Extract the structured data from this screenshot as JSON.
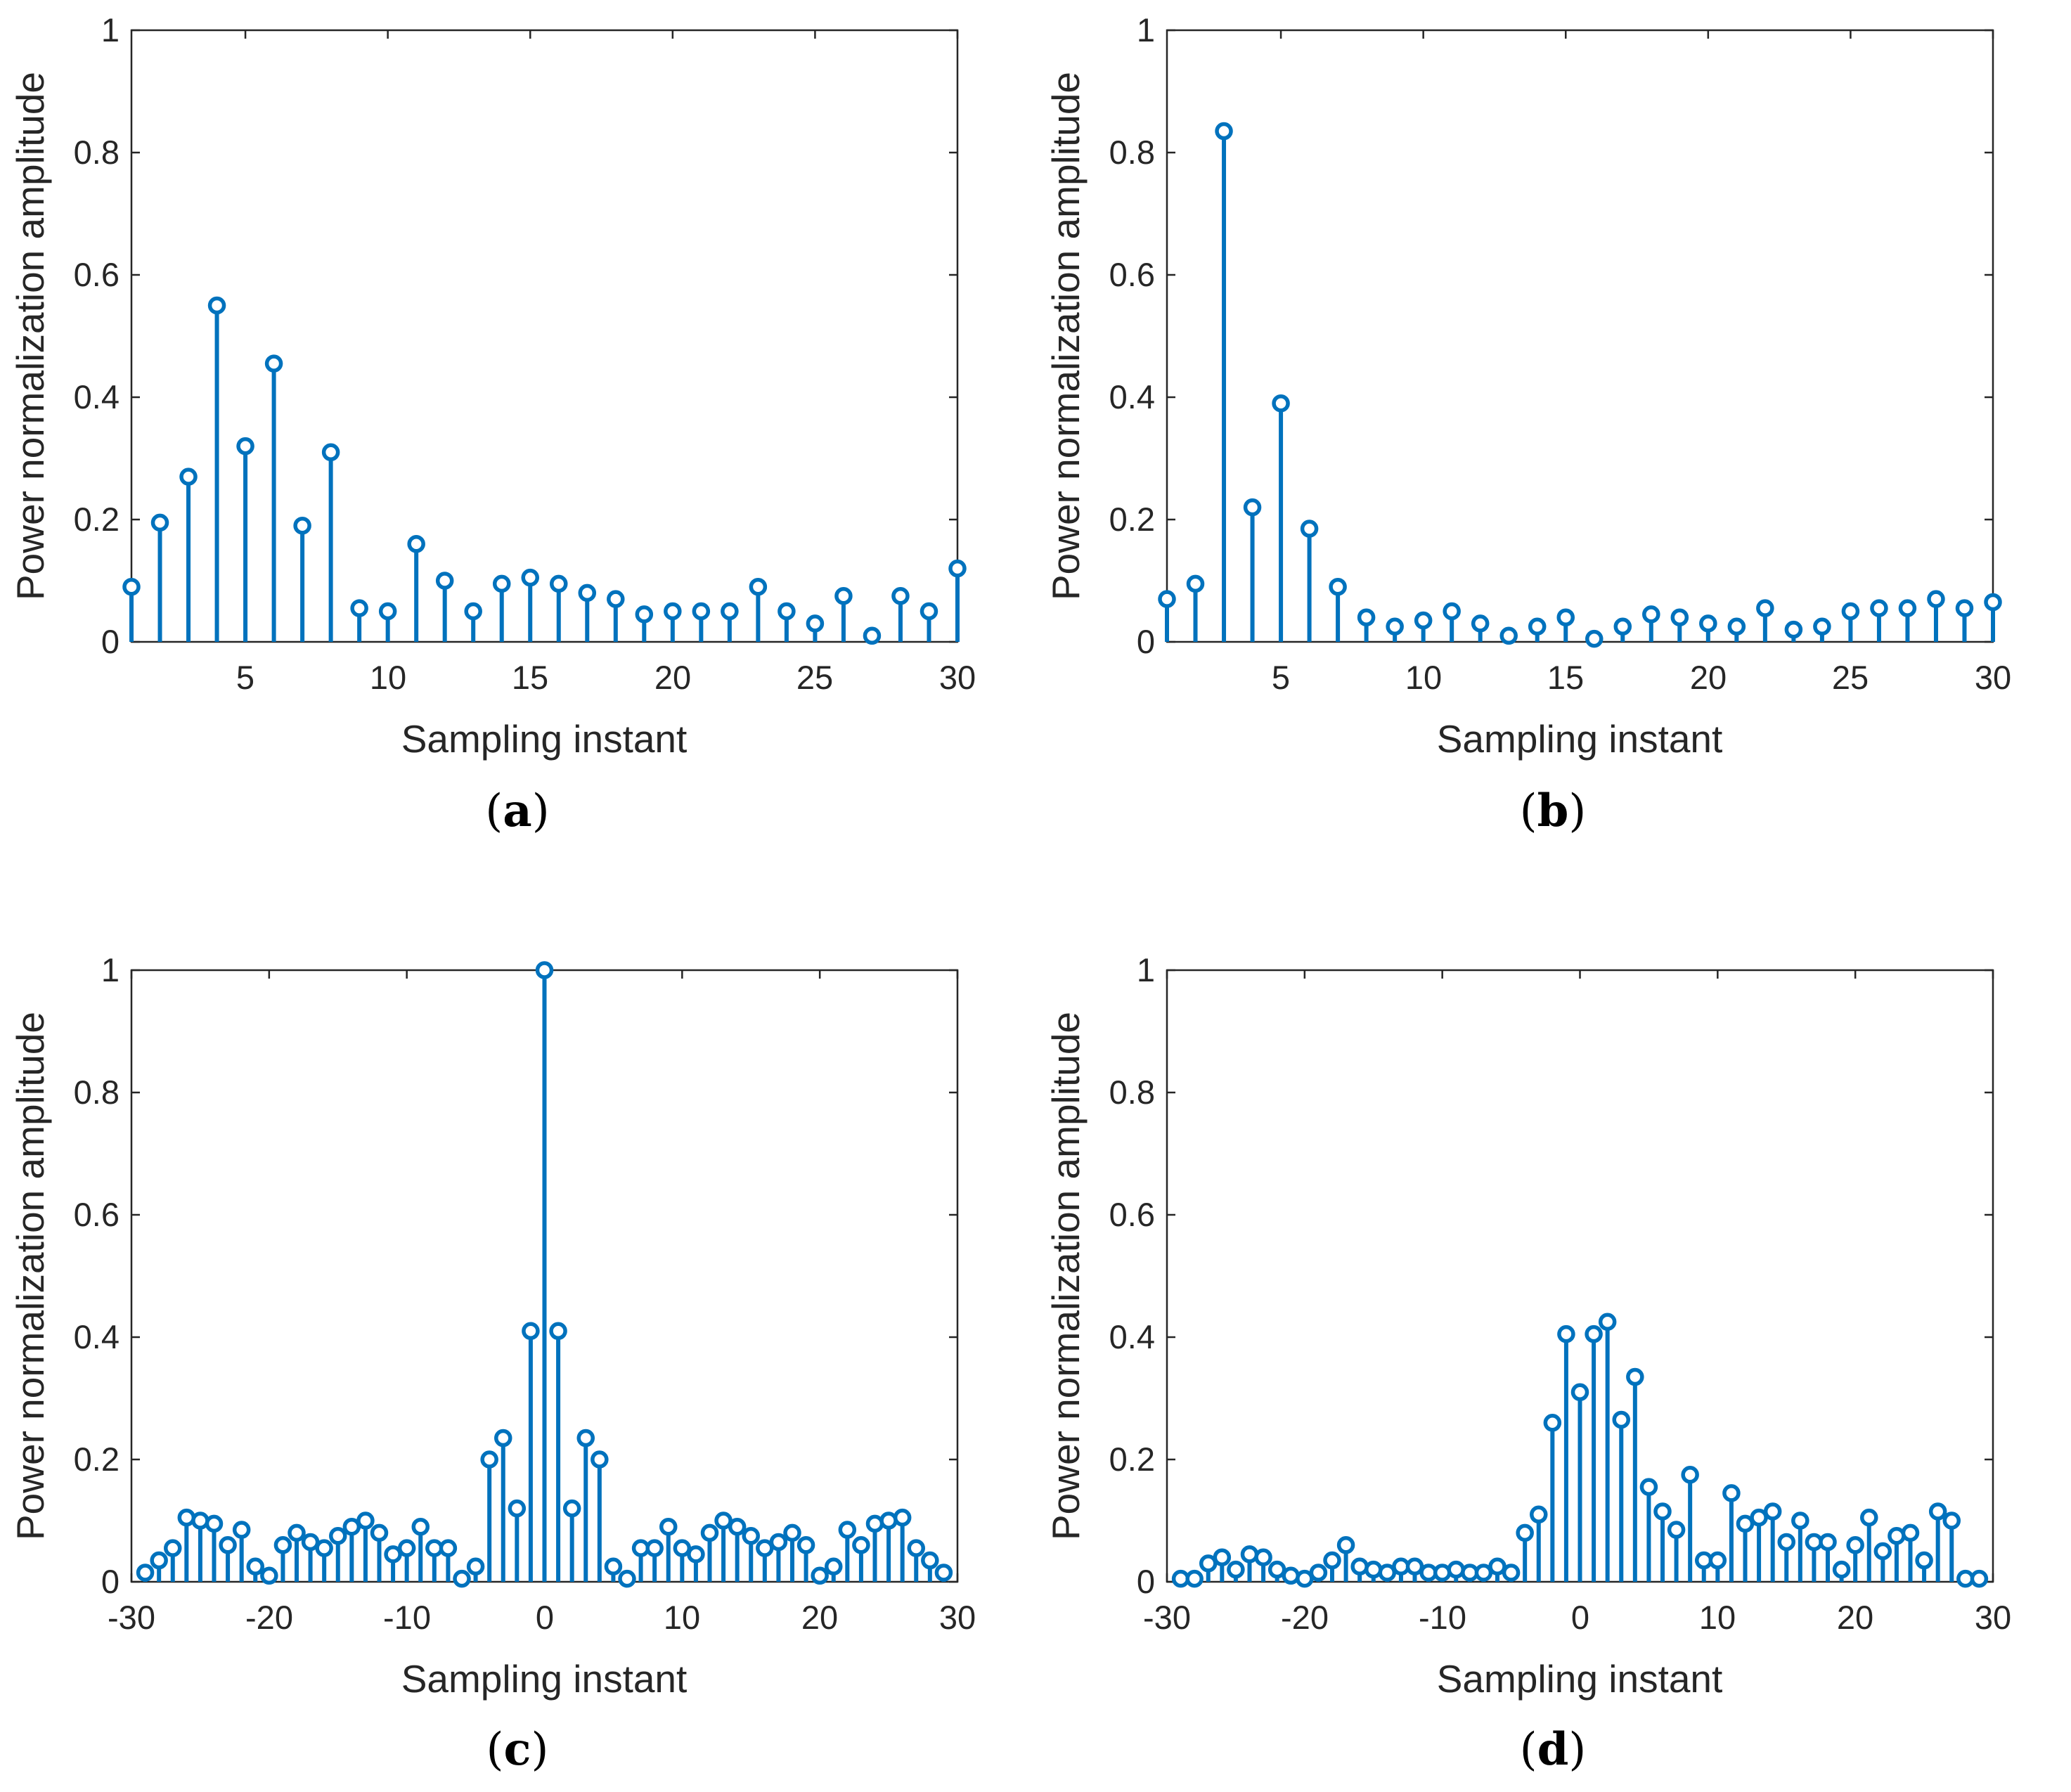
{
  "figure": {
    "stem_color": "#0072BD",
    "axis_color": "#262626"
  },
  "chart_data": [
    {
      "id": "a",
      "type": "stem",
      "caption_letter": "a",
      "xlabel": "Sampling instant",
      "ylabel": "Power normalization amplitude",
      "xlim": [
        1,
        30
      ],
      "ylim": [
        0,
        1
      ],
      "xticks": [
        5,
        10,
        15,
        20,
        25,
        30
      ],
      "yticks": [
        0,
        0.2,
        0.4,
        0.6,
        0.8,
        1
      ],
      "xtick_labels": [
        "5",
        "10",
        "15",
        "20",
        "25",
        "30"
      ],
      "ytick_labels": [
        "0",
        "0.2",
        "0.4",
        "0.6",
        "0.8",
        "1"
      ],
      "x": [
        1,
        2,
        3,
        4,
        5,
        6,
        7,
        8,
        9,
        10,
        11,
        12,
        13,
        14,
        15,
        16,
        17,
        18,
        19,
        20,
        21,
        22,
        23,
        24,
        25,
        26,
        27,
        28,
        29,
        30
      ],
      "values": [
        0.09,
        0.195,
        0.27,
        0.55,
        0.32,
        0.455,
        0.19,
        0.31,
        0.055,
        0.05,
        0.16,
        0.1,
        0.05,
        0.095,
        0.105,
        0.095,
        0.08,
        0.07,
        0.045,
        0.05,
        0.05,
        0.05,
        0.09,
        0.05,
        0.03,
        0.075,
        0.01,
        0.075,
        0.05,
        0.12
      ]
    },
    {
      "id": "b",
      "type": "stem",
      "caption_letter": "b",
      "xlabel": "Sampling instant",
      "ylabel": "Power normalization amplitude",
      "xlim": [
        1,
        30
      ],
      "ylim": [
        0,
        1
      ],
      "xticks": [
        5,
        10,
        15,
        20,
        25,
        30
      ],
      "yticks": [
        0,
        0.2,
        0.4,
        0.6,
        0.8,
        1
      ],
      "xtick_labels": [
        "5",
        "10",
        "15",
        "20",
        "25",
        "30"
      ],
      "ytick_labels": [
        "0",
        "0.2",
        "0.4",
        "0.6",
        "0.8",
        "1"
      ],
      "x": [
        1,
        2,
        3,
        4,
        5,
        6,
        7,
        8,
        9,
        10,
        11,
        12,
        13,
        14,
        15,
        16,
        17,
        18,
        19,
        20,
        21,
        22,
        23,
        24,
        25,
        26,
        27,
        28,
        29,
        30
      ],
      "values": [
        0.07,
        0.095,
        0.835,
        0.22,
        0.39,
        0.185,
        0.09,
        0.04,
        0.025,
        0.035,
        0.05,
        0.03,
        0.01,
        0.025,
        0.04,
        0.005,
        0.025,
        0.045,
        0.04,
        0.03,
        0.025,
        0.055,
        0.02,
        0.025,
        0.05,
        0.055,
        0.055,
        0.07,
        0.055,
        0.065
      ]
    },
    {
      "id": "c",
      "type": "stem",
      "caption_letter": "c",
      "xlabel": "Sampling instant",
      "ylabel": "Power normalization amplitude",
      "xlim": [
        -30,
        30
      ],
      "ylim": [
        0,
        1
      ],
      "xticks": [
        -30,
        -20,
        -10,
        0,
        10,
        20,
        30
      ],
      "yticks": [
        0,
        0.2,
        0.4,
        0.6,
        0.8,
        1
      ],
      "xtick_labels": [
        "-30",
        "-20",
        "-10",
        "0",
        "10",
        "20",
        "30"
      ],
      "ytick_labels": [
        "0",
        "0.2",
        "0.4",
        "0.6",
        "0.8",
        "1"
      ],
      "x": [
        -29,
        -28,
        -27,
        -26,
        -25,
        -24,
        -23,
        -22,
        -21,
        -20,
        -19,
        -18,
        -17,
        -16,
        -15,
        -14,
        -13,
        -12,
        -11,
        -10,
        -9,
        -8,
        -7,
        -6,
        -5,
        -4,
        -3,
        -2,
        -1,
        0,
        1,
        2,
        3,
        4,
        5,
        6,
        7,
        8,
        9,
        10,
        11,
        12,
        13,
        14,
        15,
        16,
        17,
        18,
        19,
        20,
        21,
        22,
        23,
        24,
        25,
        26,
        27,
        28,
        29
      ],
      "values": [
        0.015,
        0.035,
        0.055,
        0.105,
        0.1,
        0.095,
        0.06,
        0.085,
        0.025,
        0.01,
        0.06,
        0.08,
        0.065,
        0.055,
        0.075,
        0.09,
        0.1,
        0.08,
        0.045,
        0.055,
        0.09,
        0.055,
        0.055,
        0.005,
        0.025,
        0.2,
        0.235,
        0.12,
        0.41,
        1.0,
        0.41,
        0.12,
        0.235,
        0.2,
        0.025,
        0.005,
        0.055,
        0.055,
        0.09,
        0.055,
        0.045,
        0.08,
        0.1,
        0.09,
        0.075,
        0.055,
        0.065,
        0.08,
        0.06,
        0.01,
        0.025,
        0.085,
        0.06,
        0.095,
        0.1,
        0.105,
        0.055,
        0.035,
        0.015
      ]
    },
    {
      "id": "d",
      "type": "stem",
      "caption_letter": "d",
      "xlabel": "Sampling instant",
      "ylabel": "Power normalization amplitude",
      "xlim": [
        -30,
        30
      ],
      "ylim": [
        0,
        1
      ],
      "xticks": [
        -30,
        -20,
        -10,
        0,
        10,
        20,
        30
      ],
      "yticks": [
        0,
        0.2,
        0.4,
        0.6,
        0.8,
        1
      ],
      "xtick_labels": [
        "-30",
        "-20",
        "-10",
        "0",
        "10",
        "20",
        "30"
      ],
      "ytick_labels": [
        "0",
        "0.2",
        "0.4",
        "0.6",
        "0.8",
        "1"
      ],
      "x": [
        -29,
        -28,
        -27,
        -26,
        -25,
        -24,
        -23,
        -22,
        -21,
        -20,
        -19,
        -18,
        -17,
        -16,
        -15,
        -14,
        -13,
        -12,
        -11,
        -10,
        -9,
        -8,
        -7,
        -6,
        -5,
        -4,
        -3,
        -2,
        -1,
        0,
        1,
        2,
        3,
        4,
        5,
        6,
        7,
        8,
        9,
        10,
        11,
        12,
        13,
        14,
        15,
        16,
        17,
        18,
        19,
        20,
        21,
        22,
        23,
        24,
        25,
        26,
        27,
        28,
        29
      ],
      "values": [
        0.005,
        0.005,
        0.03,
        0.04,
        0.02,
        0.045,
        0.04,
        0.02,
        0.01,
        0.005,
        0.015,
        0.035,
        0.06,
        0.025,
        0.02,
        0.015,
        0.025,
        0.025,
        0.015,
        0.015,
        0.02,
        0.015,
        0.015,
        0.025,
        0.015,
        0.08,
        0.11,
        0.26,
        0.405,
        0.31,
        0.405,
        0.425,
        0.265,
        0.335,
        0.155,
        0.115,
        0.085,
        0.175,
        0.035,
        0.035,
        0.145,
        0.095,
        0.105,
        0.115,
        0.065,
        0.1,
        0.065,
        0.065,
        0.02,
        0.06,
        0.105,
        0.05,
        0.075,
        0.08,
        0.035,
        0.115,
        0.1,
        0.005,
        0.005
      ]
    }
  ]
}
